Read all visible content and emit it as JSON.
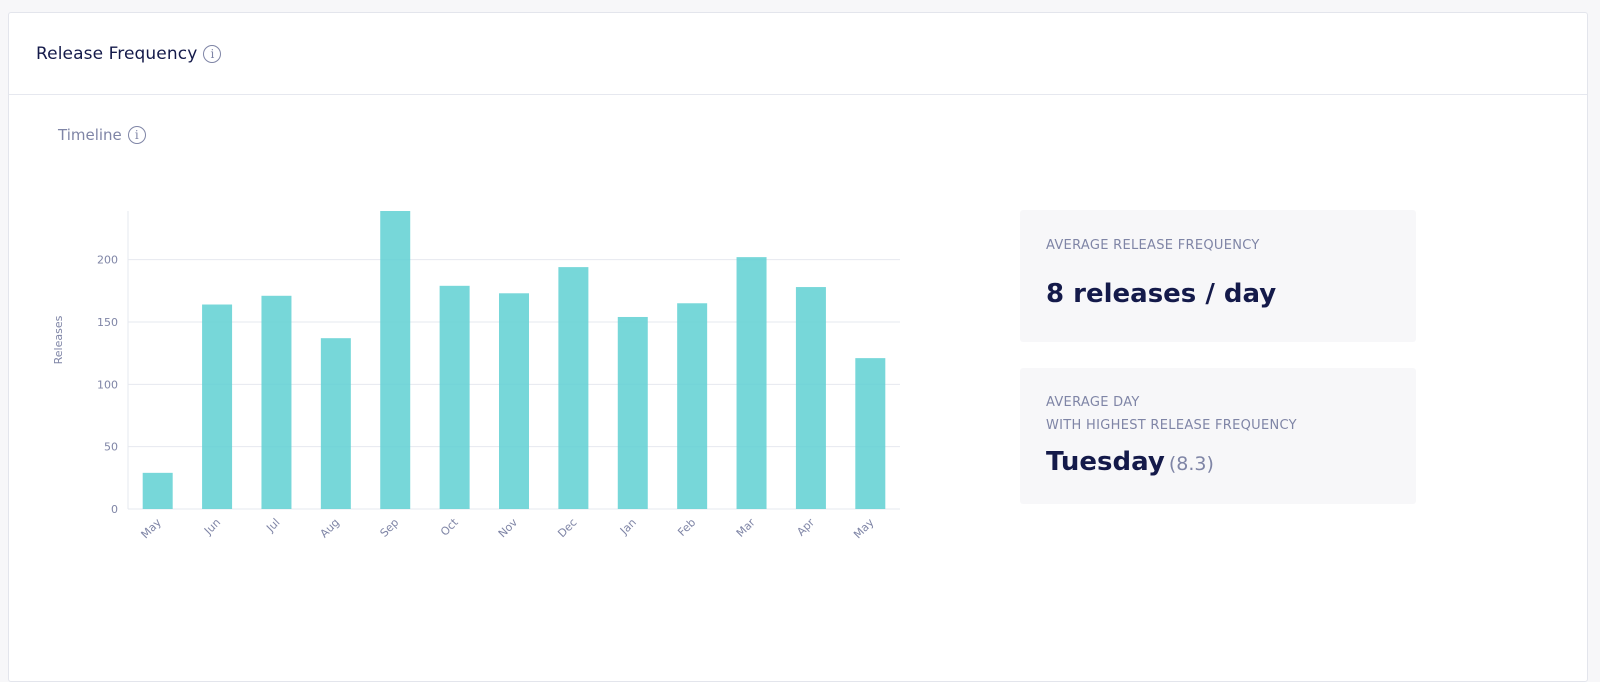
{
  "header": {
    "title": "Release Frequency"
  },
  "timeline": {
    "label": "Timeline"
  },
  "stats": {
    "avg_frequency": {
      "caption": "AVERAGE RELEASE FREQUENCY",
      "value": "8 releases / day"
    },
    "avg_day": {
      "caption_line1": "AVERAGE DAY",
      "caption_line2": "WITH HIGHEST RELEASE FREQUENCY",
      "day": "Tuesday",
      "sub": "(8.3)"
    }
  },
  "colors": {
    "bar": "#5fd0d2",
    "text": "#141a4a",
    "muted": "#7f85a6",
    "grid": "#e6e8ef"
  },
  "chart_data": {
    "type": "bar",
    "categories": [
      "May",
      "Jun",
      "Jul",
      "Aug",
      "Sep",
      "Oct",
      "Nov",
      "Dec",
      "Jan",
      "Feb",
      "Mar",
      "Apr",
      "May"
    ],
    "values": [
      29,
      164,
      171,
      137,
      239,
      179,
      173,
      194,
      154,
      165,
      202,
      178,
      121
    ],
    "ylabel": "Releases",
    "yticks": [
      0,
      50,
      100,
      150,
      200
    ],
    "ylim": [
      0,
      239
    ],
    "grid": true
  }
}
